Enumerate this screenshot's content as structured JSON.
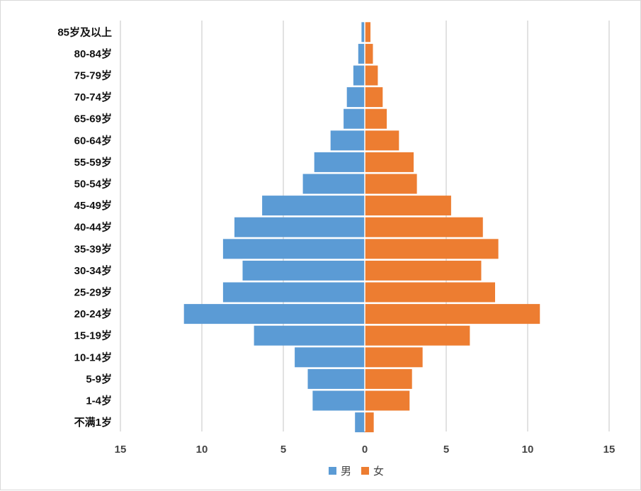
{
  "chart_data": {
    "type": "bar",
    "orientation": "horizontal",
    "layout": "population-pyramid",
    "categories": [
      "85岁及以上",
      "80-84岁",
      "75-79岁",
      "70-74岁",
      "65-69岁",
      "60-64岁",
      "55-59岁",
      "50-54岁",
      "45-49岁",
      "40-44岁",
      "35-39岁",
      "30-34岁",
      "25-29岁",
      "20-24岁",
      "15-19岁",
      "10-14岁",
      "5-9岁",
      "1-4岁",
      "不满1岁"
    ],
    "series": [
      {
        "name": "男",
        "color": "#5b9bd5",
        "side": "left",
        "values": [
          0.2,
          0.4,
          0.7,
          1.1,
          1.3,
          2.1,
          3.1,
          3.8,
          6.3,
          8.0,
          8.7,
          7.5,
          8.7,
          11.1,
          6.8,
          4.3,
          3.5,
          3.2,
          0.6
        ]
      },
      {
        "name": "女",
        "color": "#ed7d31",
        "side": "right",
        "values": [
          0.35,
          0.5,
          0.8,
          1.1,
          1.35,
          2.1,
          3.0,
          3.2,
          5.3,
          7.25,
          8.2,
          7.15,
          8.0,
          10.75,
          6.45,
          3.55,
          2.9,
          2.75,
          0.55
        ]
      }
    ],
    "x_ticks": [
      "15",
      "10",
      "5",
      "0",
      "5",
      "10",
      "15"
    ],
    "xlim": [
      -15,
      15
    ],
    "grid": "vertical",
    "legend": "bottom"
  }
}
